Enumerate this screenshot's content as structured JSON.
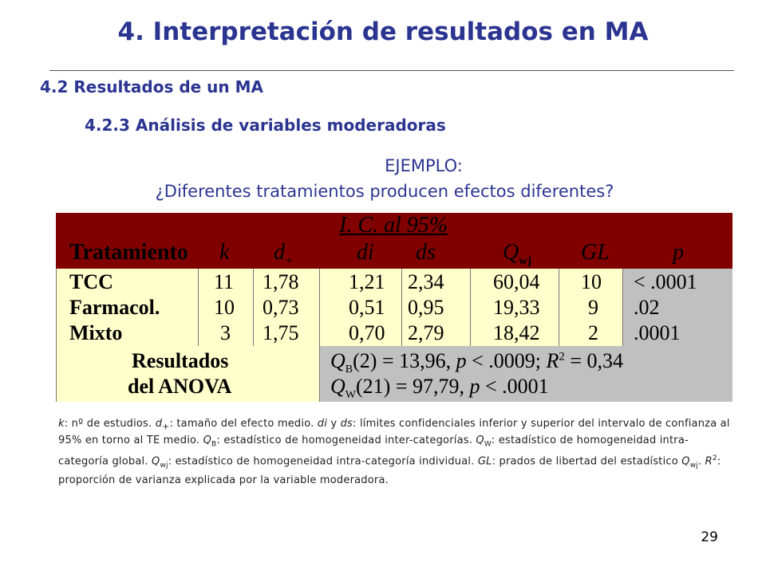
{
  "title": "4. Interpretación de resultados en MA",
  "section": "4.2 Resultados de un MA",
  "subsection": "4.2.3 Análisis de variables moderadoras",
  "example_label": "EJEMPLO:",
  "question": "¿Diferentes tratamientos producen efectos diferentes?",
  "table": {
    "ci_header": "I. C. al 95%",
    "headers": {
      "tratamiento": "Tratamiento",
      "k": "k",
      "d": "d",
      "d_sub": "+",
      "di": "di",
      "ds": "ds",
      "q": "Q",
      "q_sub": "wj",
      "gl": "GL",
      "p": "p"
    },
    "rows": [
      {
        "tratamiento": "TCC",
        "k": "11",
        "d": "1,78",
        "di": "1,21",
        "ds": "2,34",
        "q": "60,04",
        "gl": "10",
        "p": "< .0001"
      },
      {
        "tratamiento": "Farmacol.",
        "k": "10",
        "d": "0,73",
        "di": "0,51",
        "ds": "0,95",
        "q": "19,33",
        "gl": "9",
        "p": ".02"
      },
      {
        "tratamiento": "Mixto",
        "k": "3",
        "d": "1,75",
        "di": "0,70",
        "ds": "2,79",
        "q": "18,42",
        "gl": "2",
        "p": ".0001"
      }
    ],
    "anova_label_1": "Resultados",
    "anova_label_2": "del ANOVA",
    "anova_line_1": "Q_B(2) = 13,96, p < .0009; R² = 0,34",
    "anova_line_2": "Q_W(21) = 97,79, p < .0001"
  },
  "footnote": "k: nº de estudios. d+: tamaño del efecto medio. di y ds: límites confidenciales inferior y superior del intervalo de confianza al 95% en torno al TE medio. QB: estadístico de homogeneidad inter-categorías. QW: estadístico de homogeneidad intra-categoría global. Qwj: estadístico de homogeneidad intra-categoría individual. GL: prados de libertad del estadístico Qwj. R²: proporción de varianza explicada por la variable moderadora.",
  "page_number": "29"
}
